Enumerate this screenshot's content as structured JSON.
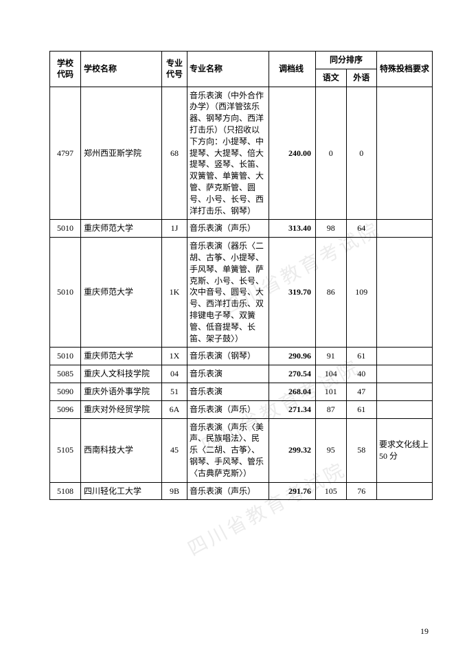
{
  "page_number": "19",
  "watermark_text": "四川省教育考试院",
  "table": {
    "headers": {
      "school_code": "学校\n代码",
      "school_name": "学校名称",
      "major_code": "专业\n代号",
      "major_name": "专业名称",
      "score": "调档线",
      "tongfen": "同分排序",
      "yuwen": "语文",
      "waiyu": "外语",
      "special_req": "特殊投档要求"
    },
    "rows": [
      {
        "school_code": "4797",
        "school_name": "郑州西亚斯学院",
        "major_code": "68",
        "major_name": "音乐表演（中外合作办学）（西洋管弦乐器、钢琴方向、西洋打击乐）（只招收以下方向：小提琴、中提琴、大提琴、倍大提琴、竖琴、长笛、双簧管、单簧管、大管、萨克斯管、圆号、小号、长号、西洋打击乐、钢琴）",
        "score": "240.00",
        "yuwen": "0",
        "waiyu": "0",
        "special_req": ""
      },
      {
        "school_code": "5010",
        "school_name": "重庆师范大学",
        "major_code": "1J",
        "major_name": "音乐表演（声乐）",
        "score": "313.40",
        "yuwen": "98",
        "waiyu": "64",
        "special_req": ""
      },
      {
        "school_code": "5010",
        "school_name": "重庆师范大学",
        "major_code": "1K",
        "major_name": "音乐表演（器乐〈二胡、古筝、小提琴、手风琴、单簧管、萨克斯、小号、长号、次中音号、圆号、大号、西洋打击乐、双排键电子琴、双簧管、低音提琴、长笛、架子鼓〉）",
        "score": "319.70",
        "yuwen": "86",
        "waiyu": "109",
        "special_req": ""
      },
      {
        "school_code": "5010",
        "school_name": "重庆师范大学",
        "major_code": "1X",
        "major_name": "音乐表演（钢琴）",
        "score": "290.96",
        "yuwen": "91",
        "waiyu": "61",
        "special_req": ""
      },
      {
        "school_code": "5085",
        "school_name": "重庆人文科技学院",
        "major_code": "04",
        "major_name": "音乐表演",
        "score": "270.54",
        "yuwen": "104",
        "waiyu": "40",
        "special_req": ""
      },
      {
        "school_code": "5090",
        "school_name": "重庆外语外事学院",
        "major_code": "51",
        "major_name": "音乐表演",
        "score": "268.04",
        "yuwen": "101",
        "waiyu": "47",
        "special_req": ""
      },
      {
        "school_code": "5096",
        "school_name": "重庆对外经贸学院",
        "major_code": "6A",
        "major_name": "音乐表演（声乐）",
        "score": "271.34",
        "yuwen": "87",
        "waiyu": "61",
        "special_req": ""
      },
      {
        "school_code": "5105",
        "school_name": "西南科技大学",
        "major_code": "45",
        "major_name": "音乐表演（声乐〈美声、民族唱法〉、民乐〈二胡、古筝〉、钢琴、手风琴、管乐〈古典萨克斯〉）",
        "score": "299.32",
        "yuwen": "95",
        "waiyu": "58",
        "special_req": "要求文化线上50 分"
      },
      {
        "school_code": "5108",
        "school_name": "四川轻化工大学",
        "major_code": "9B",
        "major_name": "音乐表演（声乐）",
        "score": "291.76",
        "yuwen": "105",
        "waiyu": "76",
        "special_req": ""
      }
    ]
  }
}
